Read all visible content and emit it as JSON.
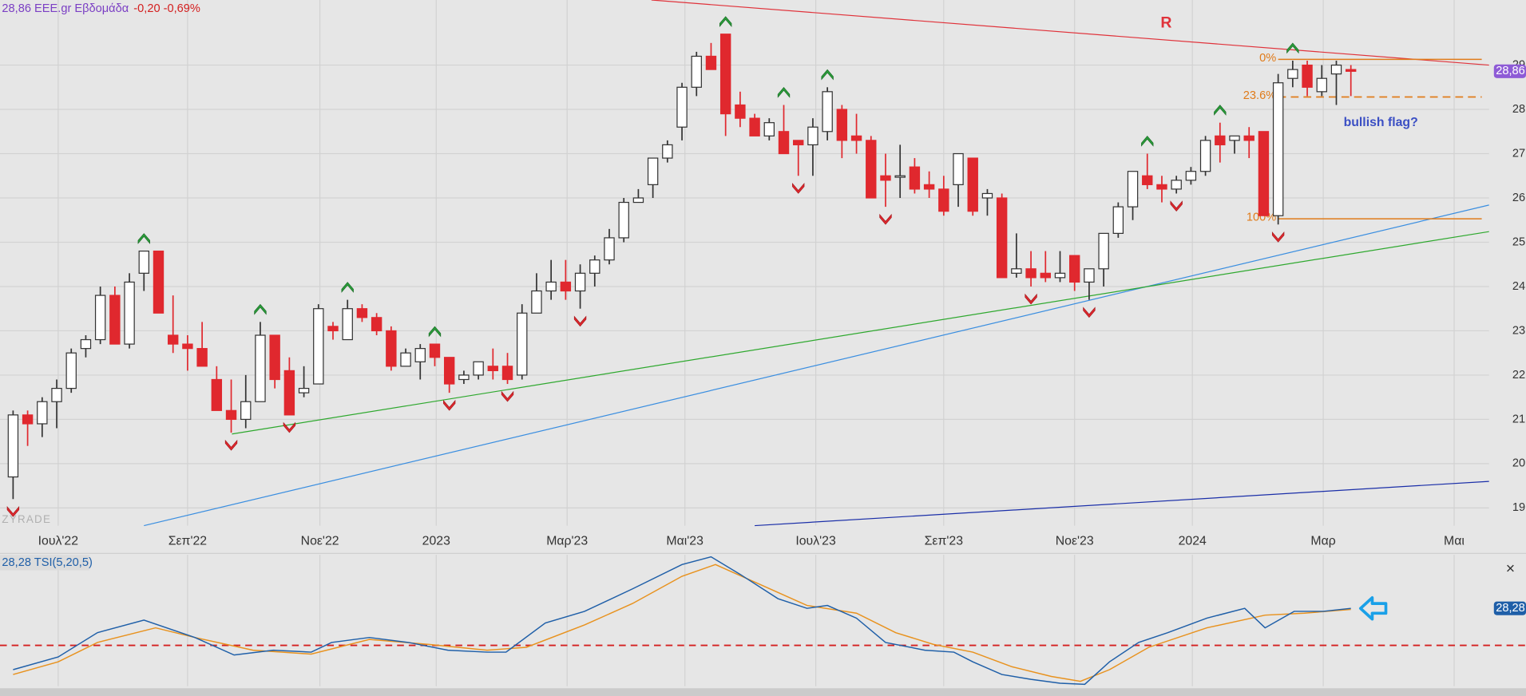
{
  "chart_data": [
    {
      "type": "candlestick",
      "symbol_label": "28,86 EEE.gr Εβδομάδα",
      "change_label": "-0,20 -0,69%",
      "watermark": "ZYRADE",
      "x": [
        0,
        1,
        2,
        3,
        4,
        5,
        6,
        7,
        8,
        9,
        10,
        11,
        12,
        13,
        14,
        15,
        16,
        17,
        18,
        19,
        20,
        21,
        22,
        23,
        24,
        25,
        26,
        27,
        28,
        29,
        30,
        31,
        32,
        33,
        34,
        35,
        36,
        37,
        38,
        39,
        40,
        41,
        42,
        43,
        44,
        45,
        46,
        47,
        48,
        49,
        50,
        51,
        52,
        53,
        54,
        55,
        56,
        57,
        58,
        59,
        60,
        61,
        62,
        63,
        64,
        65,
        66,
        67,
        68,
        69,
        70,
        71,
        72,
        73,
        74,
        75,
        76,
        77,
        78,
        79,
        80,
        81,
        82,
        83,
        84,
        85,
        86,
        87,
        88,
        89,
        90,
        91,
        92
      ],
      "open": [
        19.7,
        21.1,
        20.9,
        21.4,
        21.7,
        22.6,
        22.8,
        23.8,
        22.7,
        24.3,
        24.8,
        22.9,
        22.7,
        22.6,
        21.9,
        21.2,
        21.0,
        21.4,
        22.9,
        22.1,
        21.6,
        21.8,
        23.1,
        22.8,
        23.5,
        23.3,
        23.0,
        22.2,
        22.3,
        22.7,
        22.4,
        21.9,
        22.0,
        22.2,
        22.2,
        22.0,
        23.4,
        23.9,
        24.1,
        23.9,
        24.3,
        24.6,
        25.1,
        25.9,
        26.3,
        26.9,
        27.6,
        28.5,
        29.2,
        29.7,
        28.1,
        27.8,
        27.4,
        27.5,
        27.3,
        27.2,
        27.5,
        28.0,
        27.4,
        27.3,
        26.5,
        26.5,
        26.7,
        26.3,
        26.2,
        26.3,
        26.9,
        26.0,
        26.0,
        24.3,
        24.4,
        24.3,
        24.2,
        24.7,
        24.1,
        24.4,
        25.2,
        25.8,
        26.5,
        26.3,
        26.2,
        26.4,
        26.6,
        27.4,
        27.3,
        27.4,
        27.5,
        25.6,
        28.7,
        29.0,
        28.4,
        28.8,
        28.9
      ],
      "high": [
        21.2,
        21.2,
        21.5,
        21.9,
        22.6,
        22.9,
        24.0,
        24.0,
        24.3,
        24.8,
        24.8,
        23.8,
        22.9,
        23.2,
        22.2,
        21.9,
        22.0,
        23.2,
        22.9,
        22.4,
        22.2,
        23.6,
        23.2,
        23.7,
        23.6,
        23.4,
        23.1,
        22.6,
        22.7,
        22.7,
        22.4,
        22.1,
        22.3,
        22.6,
        22.5,
        23.6,
        24.3,
        24.6,
        24.6,
        24.5,
        24.7,
        25.3,
        26.0,
        26.2,
        26.9,
        27.3,
        28.6,
        29.3,
        29.5,
        29.7,
        28.4,
        27.9,
        27.8,
        28.1,
        27.3,
        27.8,
        28.5,
        28.1,
        27.9,
        27.4,
        27.0,
        27.2,
        26.9,
        26.6,
        26.5,
        27.0,
        26.9,
        26.2,
        26.1,
        25.2,
        24.8,
        24.8,
        24.8,
        24.7,
        24.4,
        25.2,
        25.9,
        26.6,
        27.0,
        26.5,
        26.5,
        26.7,
        27.4,
        27.7,
        27.4,
        27.6,
        27.5,
        28.8,
        29.1,
        29.1,
        29.0,
        29.1,
        29.0
      ],
      "low": [
        19.2,
        20.4,
        20.6,
        20.8,
        21.6,
        22.4,
        22.7,
        22.7,
        22.6,
        23.9,
        23.4,
        22.5,
        22.1,
        22.2,
        21.2,
        20.7,
        20.8,
        21.4,
        21.7,
        21.1,
        21.5,
        21.8,
        22.8,
        22.8,
        23.2,
        22.9,
        22.1,
        22.2,
        21.9,
        22.2,
        21.6,
        21.8,
        21.9,
        21.9,
        21.8,
        21.9,
        23.4,
        23.7,
        23.7,
        23.5,
        24.0,
        24.5,
        25.0,
        25.9,
        26.0,
        26.8,
        27.3,
        28.3,
        28.9,
        27.4,
        27.6,
        27.4,
        27.3,
        27.0,
        26.5,
        26.5,
        27.3,
        26.9,
        27.0,
        26.0,
        25.8,
        26.0,
        26.1,
        26.0,
        25.6,
        25.8,
        25.6,
        25.6,
        24.2,
        24.2,
        24.0,
        24.1,
        24.1,
        23.9,
        23.7,
        24.0,
        25.1,
        25.5,
        26.2,
        25.9,
        26.1,
        26.3,
        26.5,
        26.8,
        27.0,
        26.9,
        25.6,
        25.4,
        28.5,
        28.3,
        28.3,
        28.1,
        28.3
      ],
      "close": [
        21.1,
        20.9,
        21.4,
        21.7,
        22.5,
        22.8,
        23.8,
        22.7,
        24.1,
        24.8,
        23.4,
        22.7,
        22.6,
        22.2,
        21.2,
        21.0,
        21.4,
        22.9,
        21.9,
        21.1,
        21.7,
        23.5,
        23.0,
        23.5,
        23.3,
        23.0,
        22.2,
        22.5,
        22.6,
        22.4,
        21.8,
        22.0,
        22.3,
        22.1,
        21.9,
        23.4,
        23.9,
        24.1,
        23.9,
        24.3,
        24.6,
        25.1,
        25.9,
        26.0,
        26.9,
        27.2,
        28.5,
        29.2,
        28.9,
        27.9,
        27.8,
        27.4,
        27.7,
        27.0,
        27.2,
        27.6,
        28.4,
        27.3,
        27.3,
        26.0,
        26.4,
        26.5,
        26.2,
        26.2,
        25.7,
        27.0,
        25.7,
        26.1,
        24.2,
        24.4,
        24.2,
        24.2,
        24.3,
        24.1,
        24.4,
        25.2,
        25.8,
        26.6,
        26.3,
        26.2,
        26.4,
        26.6,
        27.3,
        27.2,
        27.4,
        27.3,
        25.6,
        28.6,
        28.9,
        28.5,
        28.7,
        29.0,
        28.86
      ],
      "up_color": "#ffffff",
      "down_color": "#e0282e",
      "xlim": [
        -0.9,
        101.5
      ],
      "xticks": [
        {
          "value": 3.1,
          "label": "Ιουλ'22"
        },
        {
          "value": 12.0,
          "label": "Σεπ'22"
        },
        {
          "value": 21.1,
          "label": "Νοε'22"
        },
        {
          "value": 29.1,
          "label": "2023"
        },
        {
          "value": 38.1,
          "label": "Μαρ'23"
        },
        {
          "value": 46.2,
          "label": "Μαι'23"
        },
        {
          "value": 55.2,
          "label": "Ιουλ'23"
        },
        {
          "value": 64.0,
          "label": "Σεπ'23"
        },
        {
          "value": 73.0,
          "label": "Νοε'23"
        },
        {
          "value": 81.1,
          "label": "2024"
        },
        {
          "value": 90.1,
          "label": "Μαρ"
        },
        {
          "value": 99.1,
          "label": "Μαι"
        }
      ],
      "ylim": [
        18.6,
        30.47
      ],
      "yticks": [
        19,
        20,
        21,
        22,
        23,
        24,
        25,
        26,
        27,
        28,
        29
      ],
      "grid": true,
      "last_price": 28.86,
      "last_price_label": "28,86",
      "last_price_color": "#8e5bd6",
      "up_signals": [
        9,
        17,
        23,
        29,
        49,
        53,
        56,
        78,
        83,
        88
      ],
      "down_signals": [
        0,
        15,
        19,
        30,
        34,
        39,
        54,
        60,
        70,
        74,
        80,
        87
      ],
      "trendlines": [
        {
          "color": "#e0323a",
          "points": [
            [
              43.9,
              30.47
            ],
            [
              101.5,
              29.0
            ]
          ]
        },
        {
          "color": "#3a8ee0",
          "points": [
            [
              9.0,
              18.6
            ],
            [
              101.5,
              25.84
            ]
          ]
        },
        {
          "color": "#2ea82e",
          "points": [
            [
              15.05,
              20.67
            ],
            [
              101.5,
              25.24
            ]
          ]
        },
        {
          "color": "#1a2ea8",
          "points": [
            [
              51.0,
              18.6
            ],
            [
              101.5,
              19.6
            ]
          ]
        }
      ],
      "fib_color": "#e07b1a",
      "fib_range": [
        87,
        101
      ],
      "fib_levels": [
        {
          "label": "0%",
          "value": 29.13,
          "style": "solid"
        },
        {
          "label": "23.6%",
          "value": 28.28,
          "style": "dashed"
        },
        {
          "label": "100%",
          "value": 25.53,
          "style": "solid"
        }
      ],
      "annotations": [
        {
          "text": "R",
          "x": 79.3,
          "y": 29.94,
          "color": "#e0323a",
          "anchor": "middle"
        },
        {
          "text": "bullish flag?",
          "x": 91.5,
          "y": 27.7,
          "color": "#3b4fc4",
          "anchor": "start"
        }
      ]
    },
    {
      "type": "line",
      "label": "28,28 TSI(5,20,5)",
      "last_value_label": "28,28",
      "close_icon": "×",
      "ylim": [
        -31.3,
        69.2
      ],
      "hline": 0,
      "hline_color": "#d42020",
      "series": [
        {
          "color": "#1f5fa8",
          "x": [
            0,
            3.1,
            5.8,
            9.0,
            12.5,
            15.2,
            17.9,
            20.5,
            21.9,
            24.5,
            27.2,
            29.9,
            32.6,
            33.9,
            36.6,
            39.3,
            42.6,
            46.0,
            48.0,
            50.0,
            52.6,
            54.6,
            56.0,
            58.0,
            60.0,
            62.7,
            64.7,
            66.0,
            68.0,
            70.0,
            72.0,
            73.7,
            75.4,
            77.4,
            79.4,
            82.1,
            84.7,
            86.1,
            88.1,
            90.1,
            92.0
          ],
          "values": [
            -18.6,
            -8.9,
            9.7,
            19.3,
            6.0,
            -7.4,
            -3.7,
            -5.2,
            2.2,
            6.0,
            2.2,
            -3.7,
            -5.2,
            -5.2,
            17.1,
            26.0,
            43.2,
            61.8,
            67.7,
            54.3,
            35.7,
            28.3,
            30.5,
            20.8,
            2.2,
            -3.7,
            -5.2,
            -12.6,
            -22.3,
            -26.0,
            -29.0,
            -29.8,
            -12.6,
            2.2,
            9.7,
            20.8,
            28.3,
            13.4,
            26.0,
            26.0,
            28.28
          ]
        },
        {
          "color": "#e8921e",
          "x": [
            0,
            3.1,
            5.8,
            9.8,
            12.5,
            16.5,
            20.5,
            24.5,
            28.6,
            32.6,
            35.3,
            39.3,
            42.6,
            46.0,
            48.3,
            51.3,
            54.6,
            58.0,
            60.7,
            63.3,
            66.0,
            68.7,
            71.4,
            73.4,
            75.4,
            78.1,
            82.1,
            86.1,
            88.8,
            92.0
          ],
          "values": [
            -22.3,
            -12.6,
            2.2,
            13.4,
            6.0,
            -3.7,
            -6.7,
            4.5,
            0.7,
            -3.7,
            -1.5,
            15.6,
            32.0,
            52.8,
            61.8,
            46.9,
            30.5,
            24.6,
            9.7,
            0.7,
            -5.2,
            -16.4,
            -23.8,
            -27.5,
            -18.6,
            -1.5,
            13.4,
            23.1,
            24.6,
            27.5
          ]
        }
      ]
    }
  ]
}
